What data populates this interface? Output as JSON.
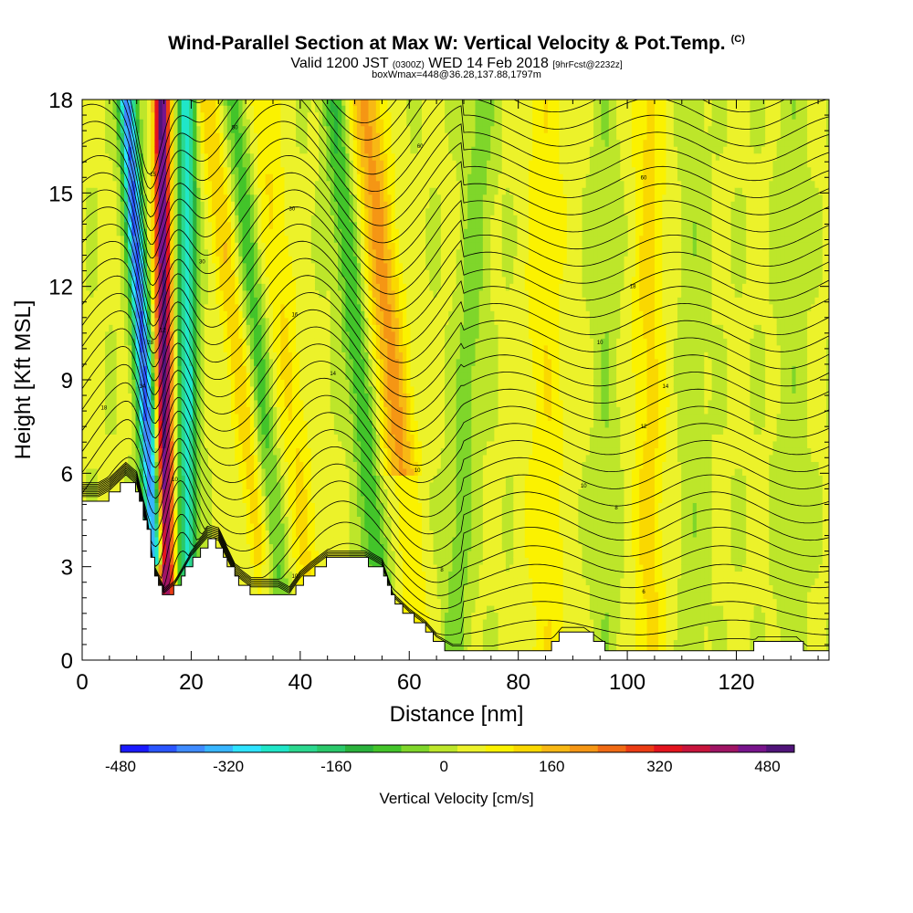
{
  "header": {
    "title": "Wind-Parallel Section at Max W: Vertical Velocity & Pot.Temp.",
    "copyright": "(C)",
    "valid_prefix": "Valid 1200 JST",
    "valid_utc": "(0300Z)",
    "valid_date": "WED 14 Feb 2018",
    "forecast": "[9hrFcst@2232z]",
    "box_info": "boxWmax=448@36.28,137.88,1797m"
  },
  "colors": {
    "scale": [
      "#1a1aff",
      "#2a55ff",
      "#3f8bff",
      "#38b6ff",
      "#2fe3ff",
      "#20e6c8",
      "#2bd88f",
      "#2ac86a",
      "#2ab23c",
      "#43c42a",
      "#7fd62a",
      "#bde62a",
      "#ecf22a",
      "#fbf200",
      "#fad800",
      "#f8b814",
      "#f59614",
      "#f06a14",
      "#eb3c14",
      "#e3141e",
      "#c8143c",
      "#a01464",
      "#78148c",
      "#50147a"
    ],
    "terrain": "#ffffff"
  },
  "chart_data": {
    "type": "heatmap",
    "xlabel": "Distance [nm]",
    "ylabel": "Height [Kft MSL]",
    "xlim": [
      0,
      137
    ],
    "ylim": [
      0,
      18
    ],
    "x_ticks": [
      0,
      20,
      40,
      60,
      80,
      100,
      120
    ],
    "y_ticks": [
      0,
      3,
      6,
      9,
      12,
      15,
      18
    ],
    "colorbar": {
      "label": "Vertical Velocity [cm/s]",
      "range": [
        -480,
        520
      ],
      "ticks": [
        -480,
        -320,
        -160,
        0,
        160,
        320,
        480
      ]
    },
    "updraft_bands_x_at_surface": [
      15,
      29,
      39,
      59,
      71,
      85,
      104
    ],
    "downdraft_bands_x_at_surface": [
      12,
      19,
      36,
      47,
      62
    ],
    "max_vertical_velocity_cm_s": 448,
    "terrain_height_kft": [
      [
        0,
        5.1
      ],
      [
        3,
        5.1
      ],
      [
        5,
        5.3
      ],
      [
        8,
        5.8
      ],
      [
        10,
        5.5
      ],
      [
        12,
        4.0
      ],
      [
        13,
        2.7
      ],
      [
        15,
        2.0
      ],
      [
        17,
        2.3
      ],
      [
        20,
        3.2
      ],
      [
        23,
        3.8
      ],
      [
        25,
        3.7
      ],
      [
        28,
        2.6
      ],
      [
        31,
        2.2
      ],
      [
        36,
        2.2
      ],
      [
        38,
        2.0
      ],
      [
        40,
        2.5
      ],
      [
        42,
        2.8
      ],
      [
        45,
        3.2
      ],
      [
        52,
        3.2
      ],
      [
        55,
        2.9
      ],
      [
        57,
        1.9
      ],
      [
        60,
        1.4
      ],
      [
        63,
        1.0
      ],
      [
        65,
        0.6
      ],
      [
        68,
        0.3
      ],
      [
        85,
        0.3
      ],
      [
        88,
        0.9
      ],
      [
        92,
        0.9
      ],
      [
        96,
        0.4
      ],
      [
        99,
        0.3
      ],
      [
        122,
        0.3
      ],
      [
        124,
        0.6
      ],
      [
        131,
        0.6
      ],
      [
        133,
        0.3
      ],
      [
        137,
        0.3
      ]
    ],
    "theta_contour_labels": [
      {
        "text": "30",
        "x": 22,
        "y": 12.8
      },
      {
        "text": "15",
        "x": 13,
        "y": 15.6
      },
      {
        "text": "28",
        "x": 12.5,
        "y": 10.2
      },
      {
        "text": "12",
        "x": 14.8,
        "y": 10.6
      },
      {
        "text": "18",
        "x": 4,
        "y": 8.1
      },
      {
        "text": "14",
        "x": 11,
        "y": 8.8
      },
      {
        "text": "10",
        "x": 17,
        "y": 5.8
      },
      {
        "text": "14",
        "x": 46,
        "y": 9.2
      },
      {
        "text": "16",
        "x": 39,
        "y": 11.1
      },
      {
        "text": "10",
        "x": 39,
        "y": 2.7
      },
      {
        "text": "30",
        "x": 38.5,
        "y": 14.5
      },
      {
        "text": "50",
        "x": 28,
        "y": 17.1
      },
      {
        "text": "60",
        "x": 62,
        "y": 16.5
      },
      {
        "text": "10",
        "x": 61.5,
        "y": 6.1
      },
      {
        "text": "8",
        "x": 66,
        "y": 2.9
      },
      {
        "text": "60",
        "x": 103,
        "y": 15.5
      },
      {
        "text": "18",
        "x": 101,
        "y": 12.0
      },
      {
        "text": "10",
        "x": 95,
        "y": 10.2
      },
      {
        "text": "14",
        "x": 107,
        "y": 8.8
      },
      {
        "text": "12",
        "x": 103,
        "y": 7.5
      },
      {
        "text": "10",
        "x": 92,
        "y": 5.6
      },
      {
        "text": "8",
        "x": 98,
        "y": 4.9
      },
      {
        "text": "6",
        "x": 103,
        "y": 2.2
      }
    ]
  }
}
